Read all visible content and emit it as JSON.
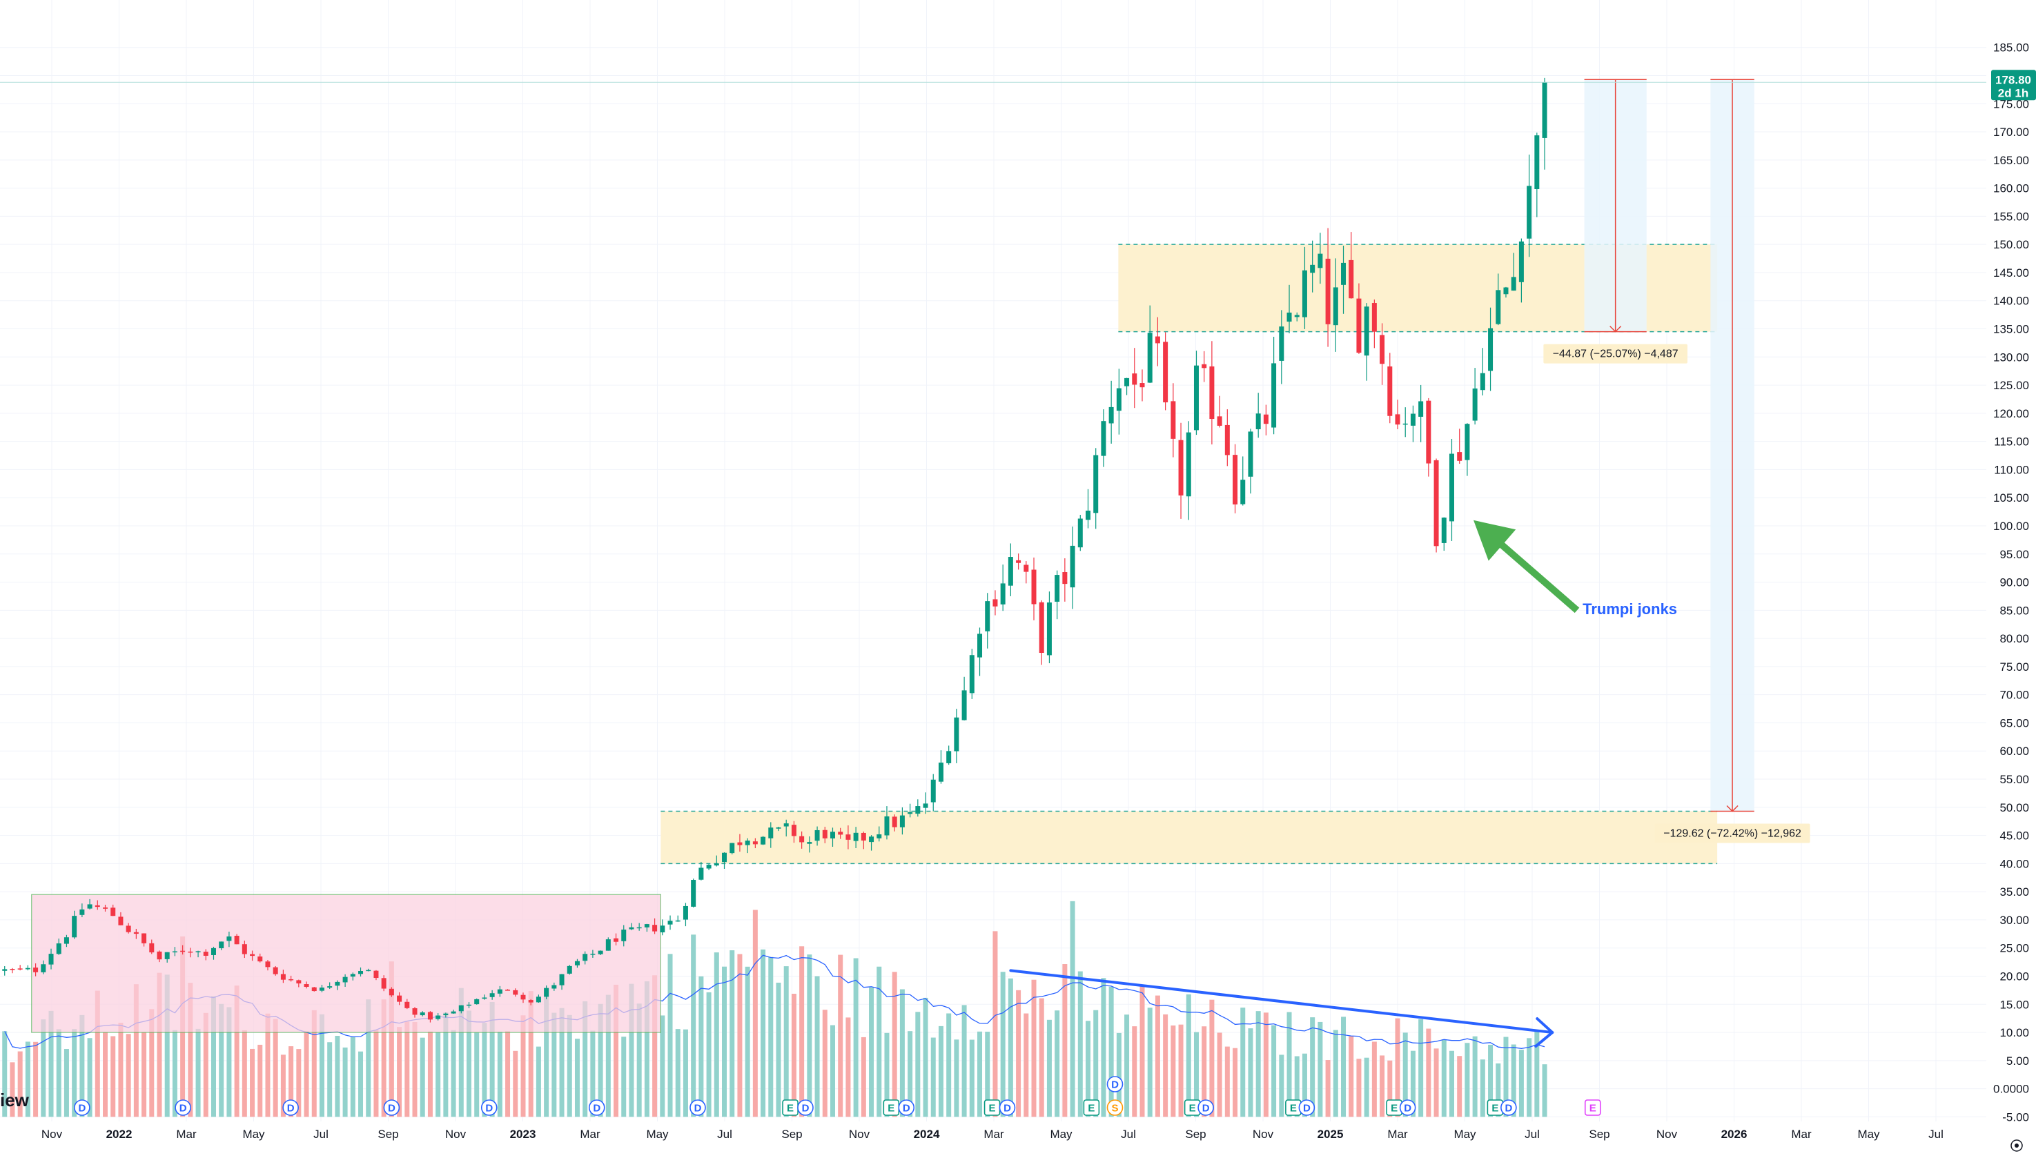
{
  "chart_data": {
    "type": "candlestick",
    "interval": "weekly",
    "y_range": [
      -5,
      185
    ],
    "y_ticks": [
      "185.00",
      "180.00",
      "175.00",
      "170.00",
      "165.00",
      "160.00",
      "155.00",
      "150.00",
      "145.00",
      "140.00",
      "135.00",
      "130.00",
      "125.00",
      "120.00",
      "115.00",
      "110.00",
      "105.00",
      "100.00",
      "95.00",
      "90.00",
      "85.00",
      "80.00",
      "75.00",
      "70.00",
      "65.00",
      "60.00",
      "55.00",
      "50.00",
      "45.00",
      "40.00",
      "35.00",
      "30.00",
      "25.00",
      "20.00",
      "15.00",
      "10.00",
      "5.00",
      "0.0000",
      "-5.00"
    ],
    "time_ticks": [
      {
        "label": "Nov",
        "t": 0,
        "bold": false
      },
      {
        "label": "2022",
        "t": 2,
        "bold": true
      },
      {
        "label": "Mar",
        "t": 4,
        "bold": false
      },
      {
        "label": "May",
        "t": 6,
        "bold": false
      },
      {
        "label": "Jul",
        "t": 8,
        "bold": false
      },
      {
        "label": "Sep",
        "t": 10,
        "bold": false
      },
      {
        "label": "Nov",
        "t": 12,
        "bold": false
      },
      {
        "label": "2023",
        "t": 14,
        "bold": true
      },
      {
        "label": "Mar",
        "t": 16,
        "bold": false
      },
      {
        "label": "May",
        "t": 18,
        "bold": false
      },
      {
        "label": "Jul",
        "t": 20,
        "bold": false
      },
      {
        "label": "Sep",
        "t": 22,
        "bold": false
      },
      {
        "label": "Nov",
        "t": 24,
        "bold": false
      },
      {
        "label": "2024",
        "t": 26,
        "bold": true
      },
      {
        "label": "Mar",
        "t": 28,
        "bold": false
      },
      {
        "label": "May",
        "t": 30,
        "bold": false
      },
      {
        "label": "Jul",
        "t": 32,
        "bold": false
      },
      {
        "label": "Sep",
        "t": 34,
        "bold": false
      },
      {
        "label": "Nov",
        "t": 36,
        "bold": false
      },
      {
        "label": "2025",
        "t": 38,
        "bold": true
      },
      {
        "label": "Mar",
        "t": 40,
        "bold": false
      },
      {
        "label": "May",
        "t": 42,
        "bold": false
      },
      {
        "label": "Jul",
        "t": 44,
        "bold": false
      },
      {
        "label": "Sep",
        "t": 46,
        "bold": false
      },
      {
        "label": "Nov",
        "t": 48,
        "bold": false
      },
      {
        "label": "2026",
        "t": 50,
        "bold": true
      },
      {
        "label": "Mar",
        "t": 52,
        "bold": false
      },
      {
        "label": "May",
        "t": 54,
        "bold": false
      },
      {
        "label": "Jul",
        "t": 56,
        "bold": false
      }
    ],
    "price_waypoints": [
      [
        -1.4,
        21
      ],
      [
        -0.5,
        21
      ],
      [
        0.5,
        28
      ],
      [
        1,
        33
      ],
      [
        1.8,
        31
      ],
      [
        2.5,
        27
      ],
      [
        3.2,
        23
      ],
      [
        4,
        25
      ],
      [
        4.5,
        24
      ],
      [
        5.2,
        27
      ],
      [
        5.8,
        24
      ],
      [
        6.5,
        21
      ],
      [
        7.2,
        19
      ],
      [
        8,
        17.5
      ],
      [
        8.6,
        20
      ],
      [
        9.3,
        21.5
      ],
      [
        10,
        17
      ],
      [
        10.6,
        14
      ],
      [
        11.3,
        12.5
      ],
      [
        11.9,
        13.5
      ],
      [
        12.5,
        15.5
      ],
      [
        13.2,
        17.5
      ],
      [
        13.8,
        17
      ],
      [
        14.3,
        15.5
      ],
      [
        15,
        19
      ],
      [
        15.5,
        22
      ],
      [
        16.1,
        24
      ],
      [
        16.8,
        27
      ],
      [
        17.4,
        28
      ],
      [
        18.1,
        29
      ],
      [
        18.6,
        30
      ],
      [
        19,
        36
      ],
      [
        19.4,
        40
      ],
      [
        20,
        42
      ],
      [
        20.6,
        45
      ],
      [
        21.3,
        45
      ],
      [
        22,
        46
      ],
      [
        22.4,
        43
      ],
      [
        22.9,
        46
      ],
      [
        23.6,
        43
      ],
      [
        24.2,
        45
      ],
      [
        24.8,
        47
      ],
      [
        25.4,
        48
      ],
      [
        25.9,
        50
      ],
      [
        26.3,
        55
      ],
      [
        26.8,
        65
      ],
      [
        27.2,
        72
      ],
      [
        27.6,
        84
      ],
      [
        28.1,
        89
      ],
      [
        28.6,
        95
      ],
      [
        29,
        89
      ],
      [
        29.4,
        79
      ],
      [
        29.8,
        88
      ],
      [
        30.2,
        92
      ],
      [
        30.6,
        100
      ],
      [
        31,
        110
      ],
      [
        31.4,
        122
      ],
      [
        31.8,
        127
      ],
      [
        32.2,
        125
      ],
      [
        32.6,
        130
      ],
      [
        32.9,
        128
      ],
      [
        33.2,
        114
      ],
      [
        33.6,
        107
      ],
      [
        34,
        125
      ],
      [
        34.4,
        123
      ],
      [
        34.8,
        119
      ],
      [
        35.2,
        106
      ],
      [
        35.6,
        115
      ],
      [
        36,
        117
      ],
      [
        36.4,
        128
      ],
      [
        36.8,
        138
      ],
      [
        37.2,
        142
      ],
      [
        37.6,
        146
      ],
      [
        38,
        137
      ],
      [
        38.4,
        143
      ],
      [
        38.8,
        135
      ],
      [
        39.2,
        140
      ],
      [
        39.6,
        128
      ],
      [
        40,
        118
      ],
      [
        40.3,
        121
      ],
      [
        40.6,
        122
      ],
      [
        41,
        108
      ],
      [
        41.2,
        97
      ],
      [
        41.5,
        110
      ],
      [
        41.9,
        115
      ],
      [
        42.2,
        121
      ],
      [
        42.5,
        131
      ],
      [
        42.8,
        135
      ],
      [
        43.1,
        142
      ],
      [
        43.4,
        142
      ],
      [
        43.7,
        157
      ],
      [
        44,
        163
      ],
      [
        44.3,
        172
      ],
      [
        44.55,
        178.8
      ]
    ],
    "volume_waypoints": [
      [
        -1.4,
        9
      ],
      [
        1,
        14
      ],
      [
        3,
        18
      ],
      [
        5,
        17
      ],
      [
        7,
        13
      ],
      [
        9,
        15
      ],
      [
        11,
        11
      ],
      [
        13,
        13
      ],
      [
        15,
        16
      ],
      [
        17,
        19
      ],
      [
        19,
        24
      ],
      [
        21,
        28
      ],
      [
        22.5,
        23
      ],
      [
        24,
        20
      ],
      [
        26,
        17
      ],
      [
        28,
        21
      ],
      [
        29.5,
        20
      ],
      [
        31,
        18
      ],
      [
        32,
        17
      ],
      [
        34,
        14
      ],
      [
        36,
        12
      ],
      [
        38,
        11
      ],
      [
        40,
        11
      ],
      [
        42,
        10
      ],
      [
        44,
        8
      ],
      [
        44.6,
        6
      ]
    ],
    "volume_scale": 0.8,
    "last_price": "178.80",
    "last_price_countdown": "2d 1h",
    "zones": [
      {
        "name": "resistance-zone",
        "top": 150,
        "bottom": 134.5,
        "t_start": 31.7,
        "t_end": 49.5
      },
      {
        "name": "support-zone",
        "top": 49.3,
        "bottom": 40,
        "t_start": 18.1,
        "t_end": 49.5
      }
    ],
    "volume_box": {
      "top": 34.5,
      "bottom": 10,
      "t_start": -0.6,
      "t_end": 18.1
    },
    "measurements": [
      {
        "name": "measure-short",
        "from": 179.3,
        "to": 134.5,
        "t_start": 45.55,
        "t_end": 47.4,
        "label": "−44.87 (−25.07%) −4,487"
      },
      {
        "name": "measure-long",
        "from": 179.3,
        "to": 49.3,
        "t_start": 49.3,
        "t_end": 50.6,
        "label": "−129.62 (−72.42%) −12,962"
      }
    ],
    "annotation": {
      "text": "Trumpi jonks",
      "price": 85.3,
      "t": 45.5
    },
    "trend_line": {
      "start": [
        28.5,
        21
      ],
      "end": [
        44.6,
        10
      ]
    },
    "events": [
      {
        "letter": "D",
        "t": 0.9,
        "row": 0
      },
      {
        "letter": "D",
        "t": 3.9,
        "row": 0
      },
      {
        "letter": "D",
        "t": 7.1,
        "row": 0
      },
      {
        "letter": "D",
        "t": 10.1,
        "row": 0
      },
      {
        "letter": "D",
        "t": 13.0,
        "row": 0
      },
      {
        "letter": "D",
        "t": 16.2,
        "row": 0
      },
      {
        "letter": "D",
        "t": 19.2,
        "row": 0
      },
      {
        "letter": "E",
        "t": 21.95,
        "row": 0
      },
      {
        "letter": "D",
        "t": 22.4,
        "row": 0
      },
      {
        "letter": "E",
        "t": 24.95,
        "row": 0
      },
      {
        "letter": "D",
        "t": 25.4,
        "row": 0
      },
      {
        "letter": "E",
        "t": 27.95,
        "row": 0
      },
      {
        "letter": "D",
        "t": 28.4,
        "row": 0
      },
      {
        "letter": "E",
        "t": 30.9,
        "row": 0
      },
      {
        "letter": "S",
        "t": 31.6,
        "row": 0
      },
      {
        "letter": "D",
        "t": 31.6,
        "row": 1
      },
      {
        "letter": "E",
        "t": 33.9,
        "row": 0
      },
      {
        "letter": "D",
        "t": 34.3,
        "row": 0
      },
      {
        "letter": "E",
        "t": 36.9,
        "row": 0
      },
      {
        "letter": "D",
        "t": 37.3,
        "row": 0
      },
      {
        "letter": "E",
        "t": 39.9,
        "row": 0
      },
      {
        "letter": "D",
        "t": 40.3,
        "row": 0
      },
      {
        "letter": "E",
        "t": 42.9,
        "row": 0
      },
      {
        "letter": "D",
        "t": 43.3,
        "row": 0
      },
      {
        "letter": "E",
        "t": 45.8,
        "row": 0,
        "future": true
      }
    ],
    "colors": {
      "up": "#089981",
      "down": "#f23645",
      "vol_up": "#92d2cc",
      "vol_down": "#f7a9a7",
      "zone_fill": "#fdf0cc",
      "zone_border": "#26a69a",
      "volume_box_fill": "#fcd0df",
      "measure_line": "#e8443a",
      "measure_fill": "#e8f4fd",
      "annotation_arrow": "#4caf50",
      "trend_line": "#2962ff",
      "volume_ma": "#2962ff",
      "grid": "#f0f3fa",
      "last_price_tag": "#089981"
    }
  },
  "branding": {
    "logo_text_tail": "iew"
  }
}
